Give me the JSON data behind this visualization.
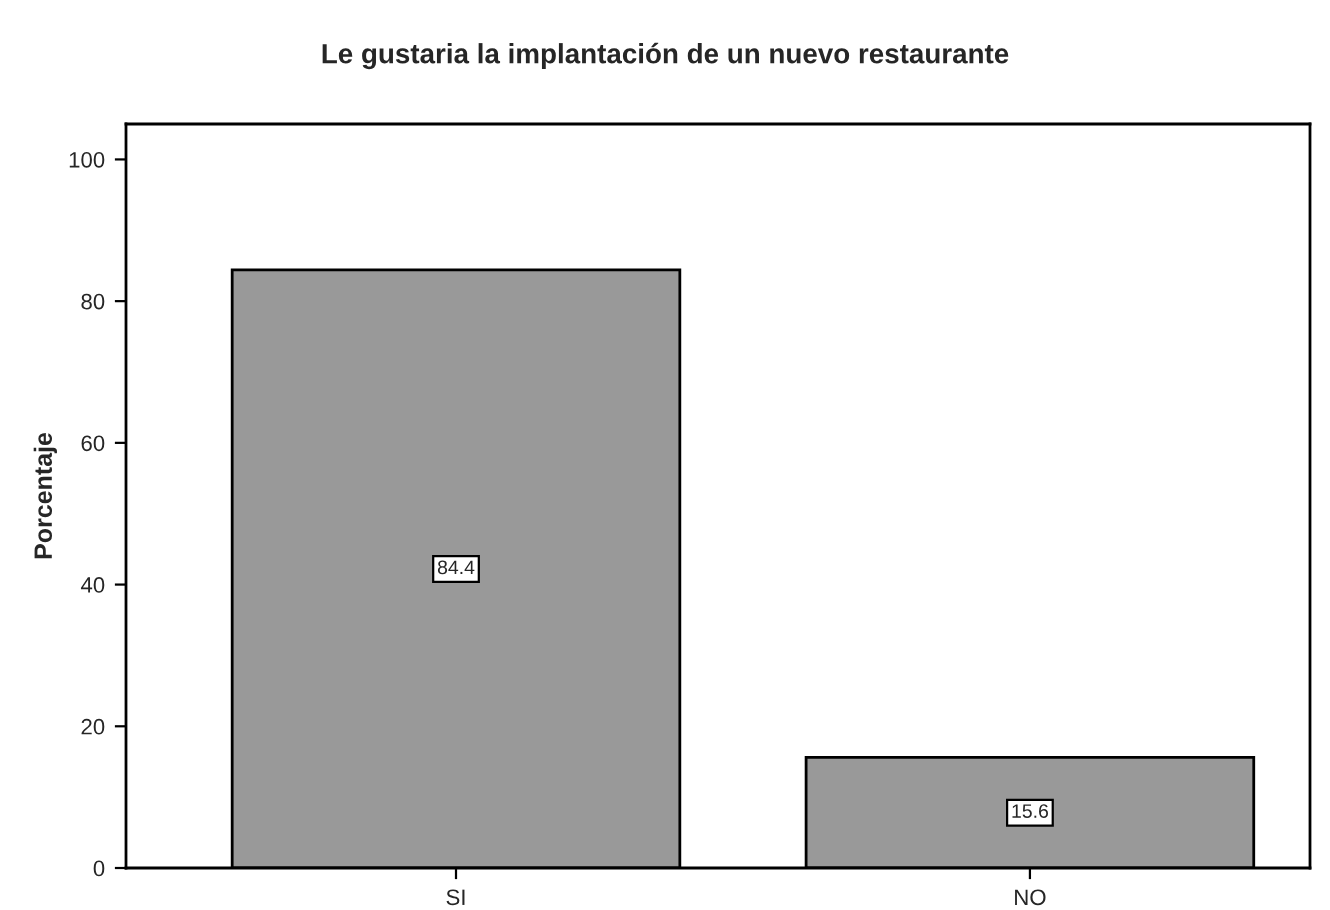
{
  "chart_data": {
    "type": "bar",
    "title": "Le gustaria la implantación de un nuevo restaurante",
    "ylabel": "Porcentaje",
    "categories": [
      "SI",
      "NO"
    ],
    "values": [
      84.4,
      15.6
    ],
    "color": "#999999",
    "ylim": [
      0,
      105
    ],
    "yticks": [
      0,
      20,
      40,
      60,
      80,
      100
    ],
    "grid": false,
    "data_labels": true
  }
}
